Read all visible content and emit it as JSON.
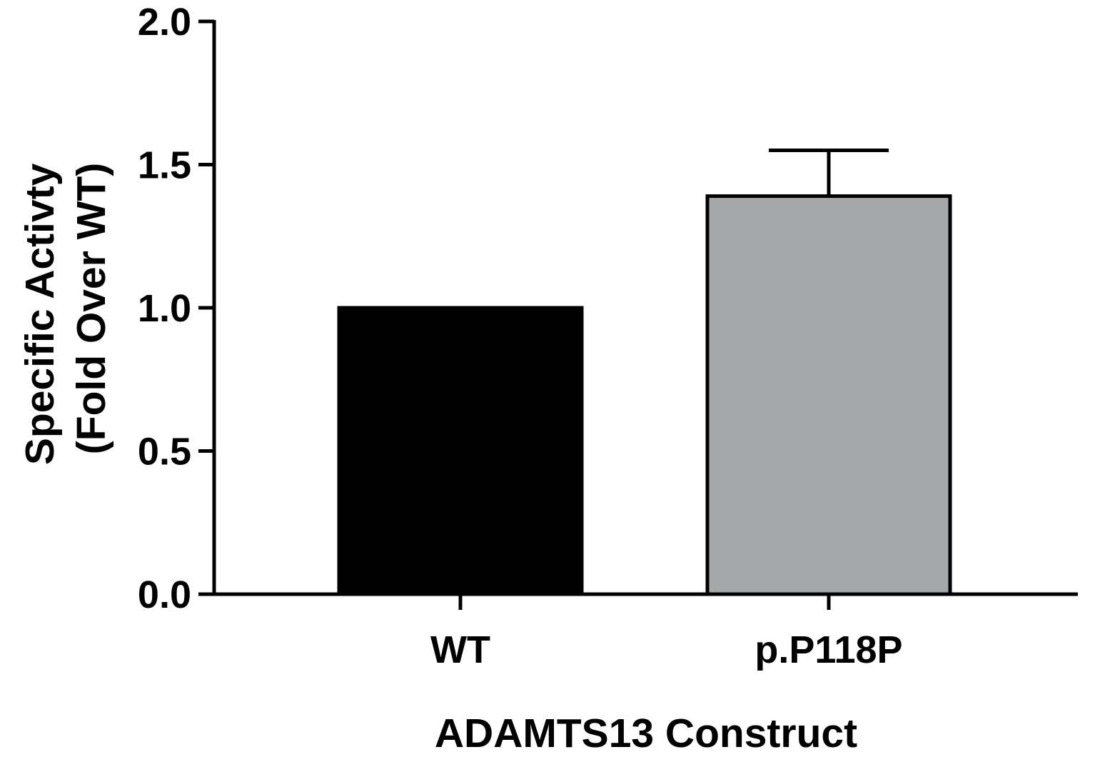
{
  "chart_data": {
    "type": "bar",
    "categories": [
      "WT",
      "p.P118P"
    ],
    "values": [
      1.0,
      1.39
    ],
    "error_upper": [
      0,
      0.16
    ],
    "title": "",
    "xlabel": "ADAMTS13 Construct",
    "ylabel_lines": [
      "Specific Activty",
      "(Fold Over WT)"
    ],
    "ylim": [
      0,
      2.0
    ],
    "yticks": [
      0.0,
      0.5,
      1.0,
      1.5,
      2.0
    ],
    "ytick_labels": [
      "0.0",
      "0.5",
      "1.0",
      "1.5",
      "2.0"
    ],
    "grid": false,
    "legend": "none",
    "colors": {
      "bars": [
        "#000000",
        "#a6a7a9"
      ],
      "axis": "#000000"
    }
  }
}
